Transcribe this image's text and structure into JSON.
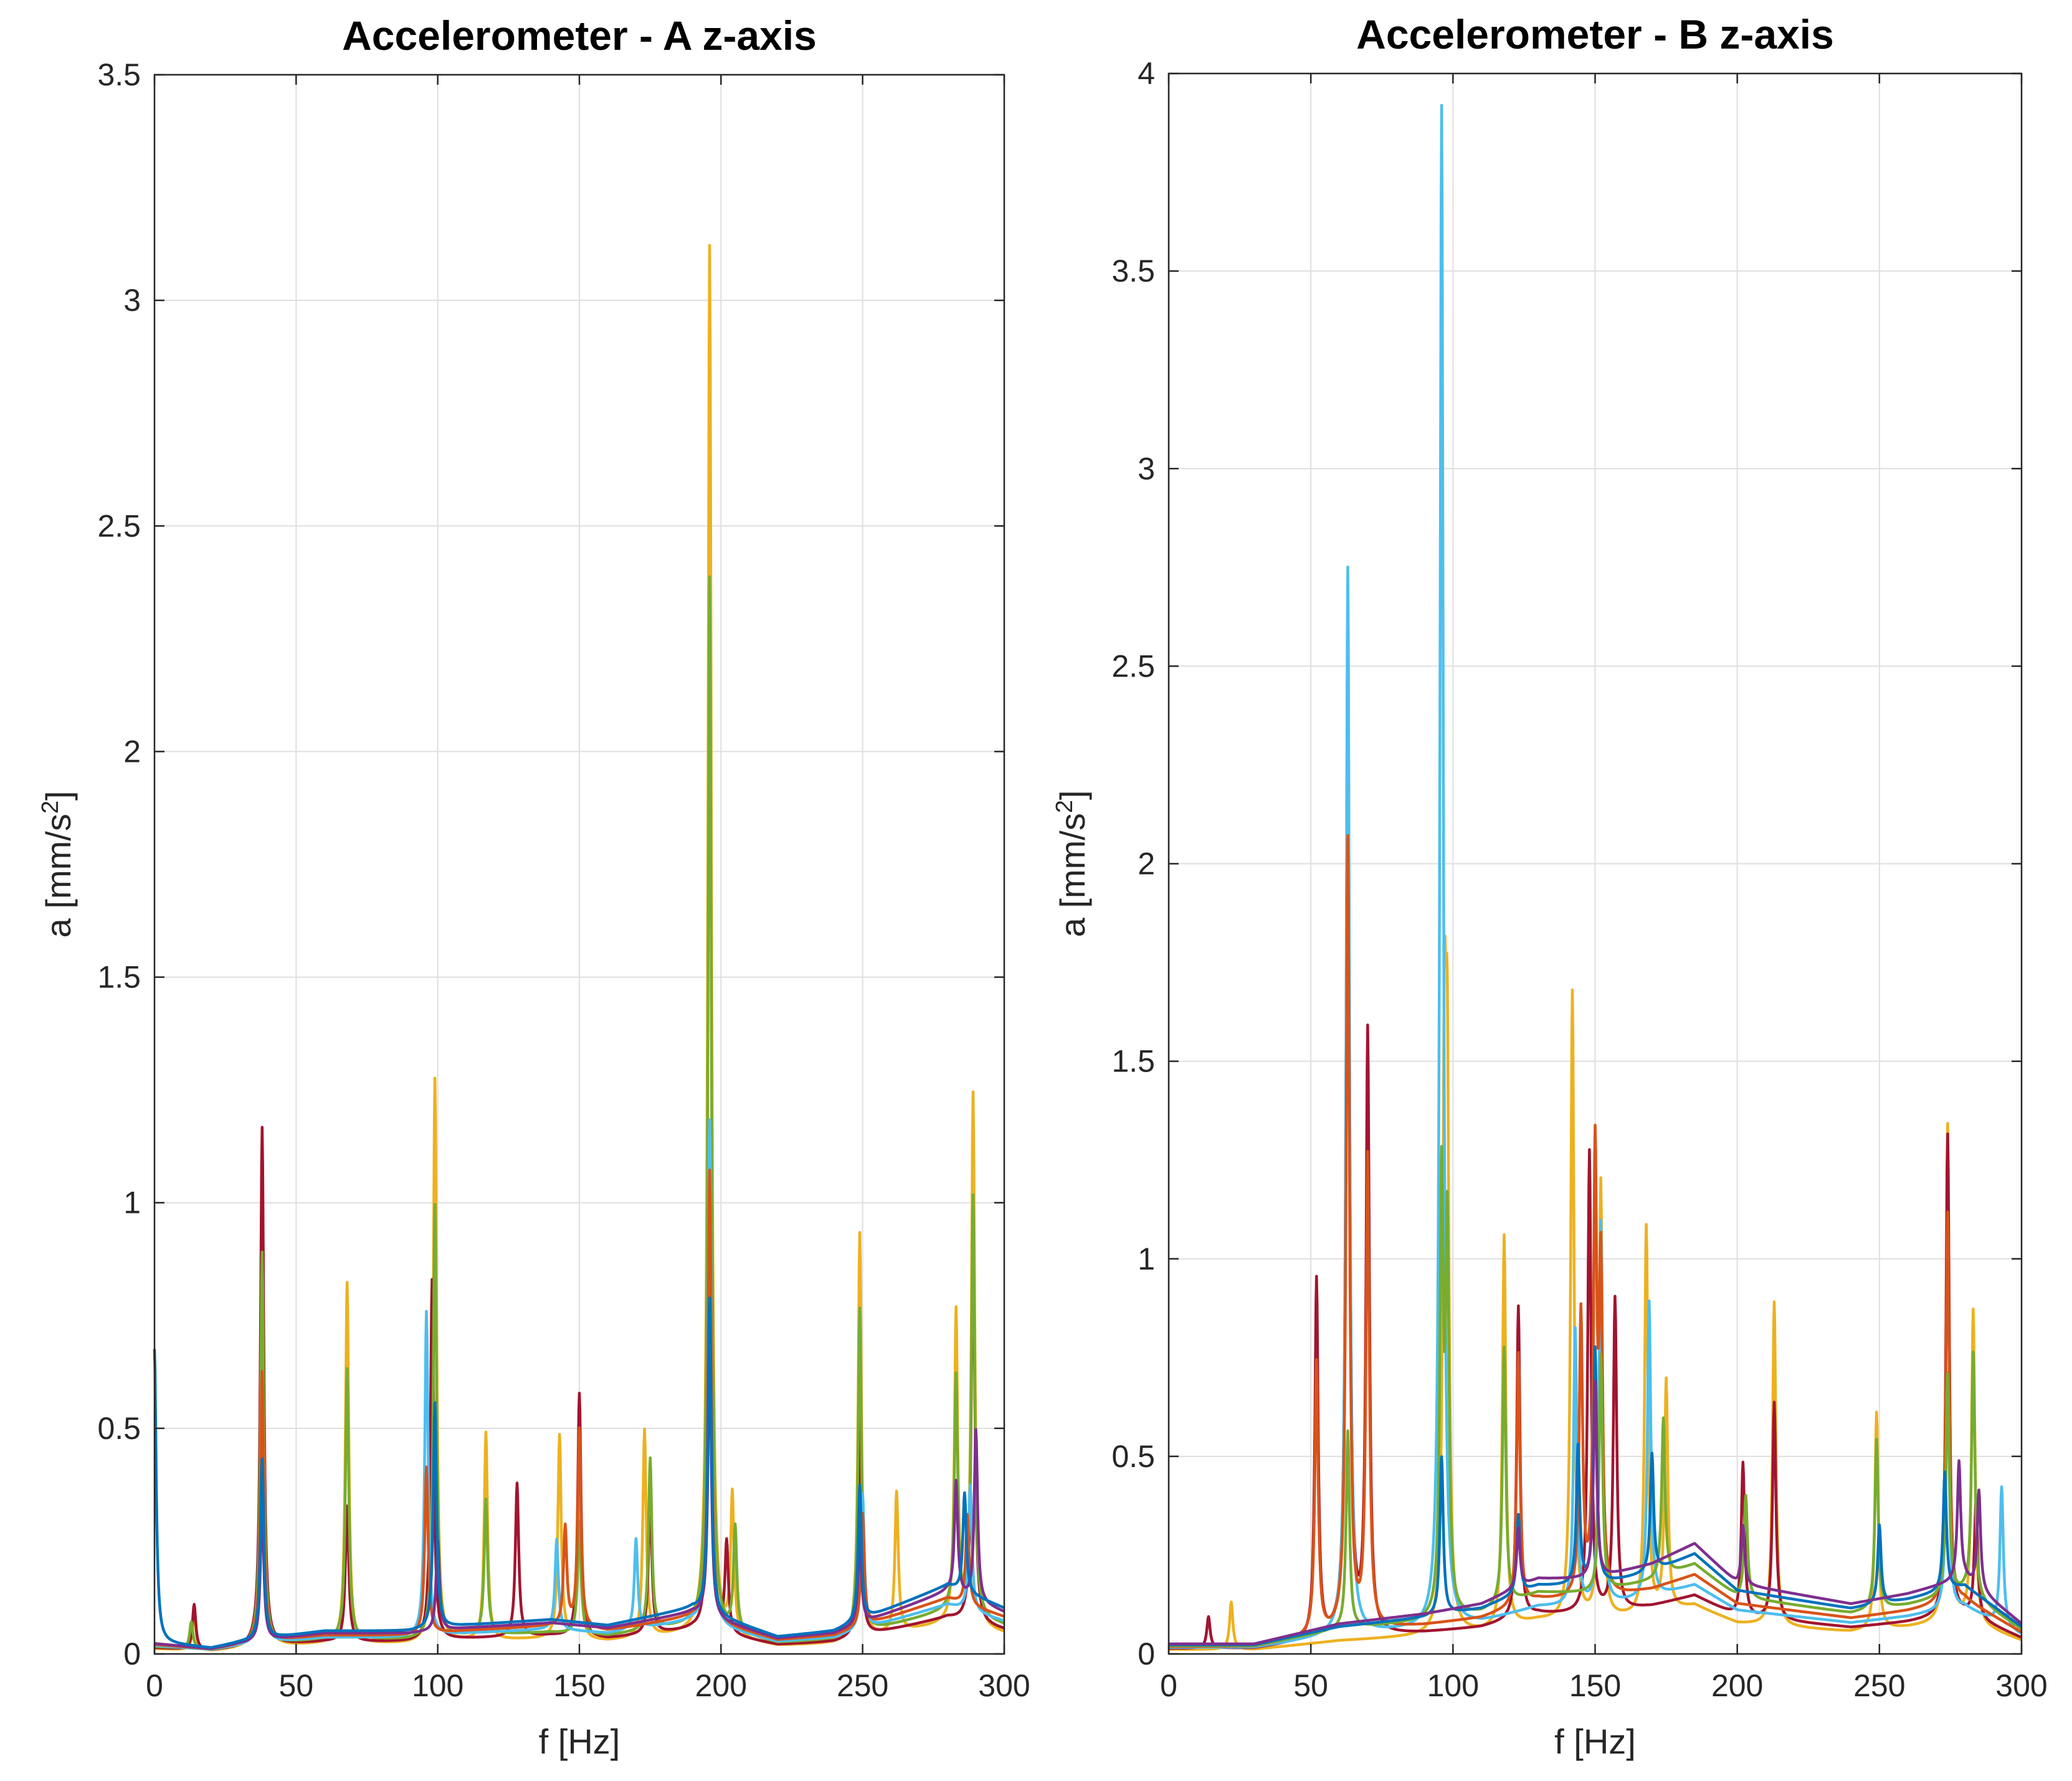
{
  "figure": {
    "panels": [
      {
        "title": "Accelerometer -  A z-axis",
        "xlabel": "f [Hz]",
        "ylabel": "a [mm/s",
        "ylabel_sup": "2",
        "ylabel_end": "]"
      },
      {
        "title": "Accelerometer -  B z-axis",
        "xlabel": "f [Hz]",
        "ylabel": "a [mm/s",
        "ylabel_sup": "2",
        "ylabel_end": "]"
      }
    ]
  },
  "chart_data": [
    {
      "type": "line",
      "title": "Accelerometer -  A z-axis",
      "xlabel": "f [Hz]",
      "ylabel": "a [mm/s^2]",
      "xlim": [
        0,
        300
      ],
      "ylim": [
        0,
        3.5
      ],
      "xticks": [
        0,
        50,
        100,
        150,
        200,
        250,
        300
      ],
      "yticks": [
        0,
        0.5,
        1,
        1.5,
        2,
        2.5,
        3,
        3.5
      ],
      "grid": true,
      "legend": "none",
      "baseline": [
        [
          0,
          0.02
        ],
        [
          20,
          0.01
        ],
        [
          30,
          0.02
        ],
        [
          45,
          0.03
        ],
        [
          60,
          0.04
        ],
        [
          90,
          0.04
        ],
        [
          110,
          0.05
        ],
        [
          140,
          0.06
        ],
        [
          160,
          0.05
        ],
        [
          180,
          0.07
        ],
        [
          190,
          0.08
        ],
        [
          220,
          0.03
        ],
        [
          240,
          0.04
        ],
        [
          260,
          0.08
        ],
        [
          280,
          0.12
        ],
        [
          300,
          0.08
        ]
      ],
      "series": [
        {
          "color": "#EDB120",
          "peaks": [
            [
              14,
              0.08
            ],
            [
              38,
              1.1
            ],
            [
              68,
              0.8
            ],
            [
              99,
              1.25
            ],
            [
              117,
              0.46
            ],
            [
              143,
              0.45
            ],
            [
              150,
              0.3
            ],
            [
              173,
              0.46
            ],
            [
              196,
              3.08
            ],
            [
              204,
              0.31
            ],
            [
              249,
              0.9
            ],
            [
              262,
              0.31
            ],
            [
              283,
              0.69
            ],
            [
              289,
              1.18
            ]
          ]
        },
        {
          "color": "#A2142F",
          "peaks": [
            [
              14,
              0.1
            ],
            [
              38,
              1.15
            ],
            [
              68,
              0.3
            ],
            [
              98,
              0.8
            ],
            [
              128,
              0.34
            ],
            [
              150,
              0.54
            ],
            [
              175,
              0.3
            ],
            [
              196,
              1.1
            ],
            [
              202,
              0.2
            ],
            [
              249,
              0.5
            ],
            [
              289,
              0.9
            ]
          ]
        },
        {
          "color": "#77AC30",
          "peaks": [
            [
              13,
              0.06
            ],
            [
              38,
              0.87
            ],
            [
              68,
              0.6
            ],
            [
              99,
              0.96
            ],
            [
              117,
              0.3
            ],
            [
              150,
              0.25
            ],
            [
              175,
              0.38
            ],
            [
              196,
              2.33
            ],
            [
              205,
              0.23
            ],
            [
              249,
              0.72
            ],
            [
              283,
              0.52
            ],
            [
              289,
              0.93
            ]
          ]
        },
        {
          "color": "#4DBEEE",
          "peaks": [
            [
              38,
              0.5
            ],
            [
              96,
              0.72
            ],
            [
              142,
              0.2
            ],
            [
              170,
              0.2
            ],
            [
              196,
              1.12
            ],
            [
              250,
              0.3
            ],
            [
              288,
              0.28
            ]
          ]
        },
        {
          "color": "#D95319",
          "peaks": [
            [
              38,
              0.6
            ],
            [
              96,
              0.37
            ],
            [
              145,
              0.22
            ],
            [
              150,
              0.44
            ],
            [
              196,
              1.0
            ],
            [
              250,
              0.25
            ],
            [
              287,
              0.2
            ]
          ]
        },
        {
          "color": "#7E2F8E",
          "peaks": [
            [
              38,
              0.3
            ],
            [
              100,
              0.2
            ],
            [
              196,
              0.6
            ],
            [
              249,
              0.2
            ],
            [
              283,
              0.25
            ],
            [
              290,
              0.38
            ]
          ]
        },
        {
          "color": "#0072BD",
          "peaks": [
            [
              0,
              0.65
            ],
            [
              38,
              0.4
            ],
            [
              99,
              0.5
            ],
            [
              196,
              0.7
            ],
            [
              249,
              0.3
            ],
            [
              286,
              0.22
            ]
          ]
        }
      ]
    },
    {
      "type": "line",
      "title": "Accelerometer -  B z-axis",
      "xlabel": "f [Hz]",
      "ylabel": "a [mm/s^2]",
      "xlim": [
        0,
        300
      ],
      "ylim": [
        0,
        4
      ],
      "xticks": [
        0,
        50,
        100,
        150,
        200,
        250,
        300
      ],
      "yticks": [
        0,
        0.5,
        1,
        1.5,
        2,
        2.5,
        3,
        3.5,
        4
      ],
      "grid": true,
      "legend": "none",
      "baseline": [
        [
          0,
          0.02
        ],
        [
          30,
          0.02
        ],
        [
          45,
          0.04
        ],
        [
          60,
          0.06
        ],
        [
          90,
          0.08
        ],
        [
          110,
          0.1
        ],
        [
          130,
          0.15
        ],
        [
          150,
          0.15
        ],
        [
          170,
          0.18
        ],
        [
          185,
          0.22
        ],
        [
          200,
          0.14
        ],
        [
          220,
          0.12
        ],
        [
          240,
          0.1
        ],
        [
          260,
          0.12
        ],
        [
          280,
          0.15
        ],
        [
          300,
          0.06
        ]
      ],
      "series": [
        {
          "color": "#EDB120",
          "peaks": [
            [
              22,
              0.12
            ],
            [
              97,
              1.33
            ],
            [
              98,
              1.24
            ],
            [
              118,
              0.99
            ],
            [
              142,
              1.59
            ],
            [
              152,
              1.11
            ],
            [
              168,
              0.98
            ],
            [
              175,
              0.58
            ],
            [
              213,
              0.82
            ],
            [
              249,
              0.55
            ],
            [
              274,
              1.26
            ],
            [
              283,
              0.79
            ]
          ]
        },
        {
          "color": "#A2142F",
          "peaks": [
            [
              14,
              0.08
            ],
            [
              52,
              0.91
            ],
            [
              63,
              2.58
            ],
            [
              70,
              1.52
            ],
            [
              123,
              0.79
            ],
            [
              148,
              1.17
            ],
            [
              157,
              0.79
            ],
            [
              202,
              0.39
            ],
            [
              213,
              0.55
            ],
            [
              274,
              1.22
            ],
            [
              284,
              0.3
            ]
          ]
        },
        {
          "color": "#4DBEEE",
          "peaks": [
            [
              63,
              2.7
            ],
            [
              96,
              3.85
            ],
            [
              143,
              0.7
            ],
            [
              152,
              0.97
            ],
            [
              169,
              0.75
            ],
            [
              274,
              0.6
            ],
            [
              293,
              0.35
            ]
          ]
        },
        {
          "color": "#D95319",
          "peaks": [
            [
              52,
              0.69
            ],
            [
              63,
              2.0
            ],
            [
              70,
              1.19
            ],
            [
              123,
              0.64
            ],
            [
              145,
              0.72
            ],
            [
              150,
              1.1
            ],
            [
              152,
              0.8
            ],
            [
              274,
              0.99
            ]
          ]
        },
        {
          "color": "#77AC30",
          "peaks": [
            [
              63,
              0.5
            ],
            [
              96,
              1.09
            ],
            [
              98,
              0.96
            ],
            [
              118,
              0.65
            ],
            [
              152,
              0.6
            ],
            [
              174,
              0.4
            ],
            [
              203,
              0.26
            ],
            [
              249,
              0.43
            ],
            [
              274,
              0.56
            ],
            [
              283,
              0.62
            ]
          ]
        },
        {
          "color": "#0072BD",
          "peaks": [
            [
              96,
              0.4
            ],
            [
              123,
              0.2
            ],
            [
              144,
              0.35
            ],
            [
              150,
              0.6
            ],
            [
              170,
              0.3
            ],
            [
              250,
              0.2
            ],
            [
              273,
              0.3
            ]
          ]
        },
        {
          "color": "#7E2F8E",
          "peaks": [
            [
              123,
              0.15
            ],
            [
              150,
              0.5
            ],
            [
              202,
              0.15
            ],
            [
              278,
              0.3
            ],
            [
              285,
              0.25
            ]
          ]
        }
      ]
    }
  ]
}
